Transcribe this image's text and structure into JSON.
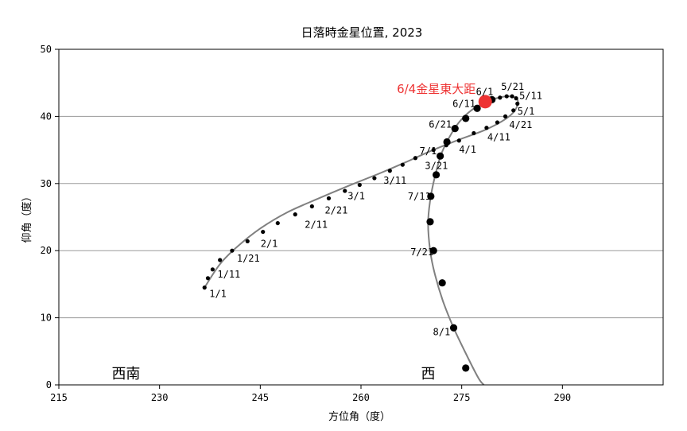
{
  "chart_data": {
    "type": "scatter",
    "title": "日落時金星位置, 2023",
    "xlabel": "方位角（度）",
    "ylabel": "仰角（度）",
    "xlim": [
      215,
      305
    ],
    "ylim": [
      0,
      50
    ],
    "xticks": [
      215,
      230,
      245,
      260,
      275,
      290
    ],
    "yticks": [
      0,
      10,
      20,
      30,
      40,
      50
    ],
    "grid": "horizontal",
    "line_color": "#808080",
    "point_color": "#000000",
    "highlight_color": "#ee3333",
    "path": [
      [
        236.7,
        14.5
      ],
      [
        239.0,
        18.0
      ],
      [
        241.7,
        20.7
      ],
      [
        245.0,
        23.3
      ],
      [
        249.0,
        25.7
      ],
      [
        253.5,
        27.7
      ],
      [
        258.0,
        29.6
      ],
      [
        262.5,
        31.4
      ],
      [
        266.5,
        33.1
      ],
      [
        270.5,
        34.9
      ],
      [
        274.5,
        36.5
      ],
      [
        278.5,
        38.0
      ],
      [
        281.5,
        39.6
      ],
      [
        283.0,
        41.0
      ],
      [
        283.3,
        42.5
      ],
      [
        282.0,
        43.0
      ],
      [
        279.5,
        42.5
      ],
      [
        277.0,
        41.3
      ],
      [
        275.0,
        39.6
      ],
      [
        273.5,
        37.5
      ],
      [
        272.0,
        34.5
      ],
      [
        271.0,
        31.0
      ],
      [
        270.3,
        27.5
      ],
      [
        270.0,
        24.0
      ],
      [
        270.3,
        20.0
      ],
      [
        271.0,
        16.5
      ],
      [
        272.2,
        12.5
      ],
      [
        273.8,
        8.5
      ],
      [
        275.7,
        4.5
      ],
      [
        277.5,
        1.0
      ],
      [
        278.3,
        0
      ]
    ],
    "small_points": [
      [
        236.7,
        14.5
      ],
      [
        237.2,
        15.9
      ],
      [
        237.9,
        17.2
      ],
      [
        239.0,
        18.6
      ],
      [
        240.8,
        20.0
      ],
      [
        243.1,
        21.4
      ],
      [
        245.4,
        22.8
      ],
      [
        247.6,
        24.1
      ],
      [
        250.2,
        25.4
      ],
      [
        252.7,
        26.6
      ],
      [
        255.2,
        27.8
      ],
      [
        257.6,
        28.9
      ],
      [
        259.8,
        29.8
      ],
      [
        262.0,
        30.8
      ],
      [
        264.3,
        31.9
      ],
      [
        266.2,
        32.8
      ],
      [
        268.1,
        33.8
      ],
      [
        270.8,
        35.0
      ],
      [
        272.7,
        35.7
      ],
      [
        274.6,
        36.4
      ],
      [
        276.8,
        37.5
      ],
      [
        278.7,
        38.3
      ],
      [
        280.3,
        39.1
      ],
      [
        281.5,
        40.0
      ],
      [
        282.7,
        40.9
      ],
      [
        283.3,
        41.9
      ],
      [
        283.1,
        42.7
      ],
      [
        282.5,
        43.0
      ],
      [
        281.7,
        43.0
      ],
      [
        280.7,
        42.8
      ]
    ],
    "large_points": [
      [
        279.5,
        42.5
      ],
      [
        277.3,
        41.2
      ],
      [
        275.6,
        39.7
      ],
      [
        274.0,
        38.2
      ],
      [
        272.8,
        36.2
      ],
      [
        271.8,
        34.1
      ],
      [
        271.2,
        31.3
      ],
      [
        270.4,
        28.1
      ],
      [
        270.3,
        24.3
      ],
      [
        270.8,
        20.0
      ],
      [
        272.1,
        15.2
      ],
      [
        273.8,
        8.5
      ],
      [
        275.6,
        2.5
      ]
    ],
    "data_labels": [
      {
        "text": "1/1",
        "x": 236.7,
        "y": 14.5,
        "dx": 6,
        "dy": 12
      },
      {
        "text": "1/11",
        "x": 237.9,
        "y": 17.2,
        "dx": 6,
        "dy": 10
      },
      {
        "text": "1/21",
        "x": 240.8,
        "y": 20.0,
        "dx": 6,
        "dy": 14
      },
      {
        "text": "2/1",
        "x": 245.4,
        "y": 22.8,
        "dx": -3,
        "dy": 19
      },
      {
        "text": "2/11",
        "x": 250.2,
        "y": 25.4,
        "dx": 12,
        "dy": 17
      },
      {
        "text": "2/21",
        "x": 255.2,
        "y": 27.8,
        "dx": -5,
        "dy": 19
      },
      {
        "text": "3/1",
        "x": 259.8,
        "y": 29.8,
        "dx": -15,
        "dy": 18
      },
      {
        "text": "3/11",
        "x": 264.3,
        "y": 31.9,
        "dx": -8,
        "dy": 16
      },
      {
        "text": "3/21",
        "x": 268.1,
        "y": 33.8,
        "dx": 12,
        "dy": 14
      },
      {
        "text": "4/1",
        "x": 274.6,
        "y": 36.4,
        "dx": 0,
        "dy": 15
      },
      {
        "text": "4/11",
        "x": 278.7,
        "y": 38.3,
        "dx": 1,
        "dy": 16
      },
      {
        "text": "4/21",
        "x": 280.3,
        "y": 39.1,
        "dx": 15,
        "dy": 7
      },
      {
        "text": "5/1",
        "x": 282.7,
        "y": 40.9,
        "dx": 5,
        "dy": 5
      },
      {
        "text": "5/11",
        "x": 283.1,
        "y": 42.7,
        "dx": 4,
        "dy": 1
      },
      {
        "text": "5/21",
        "x": 281.7,
        "y": 43.0,
        "dx": -7,
        "dy": -8
      },
      {
        "text": "6/1",
        "x": 279.5,
        "y": 42.5,
        "dx": -20,
        "dy": -6
      },
      {
        "text": "6/11",
        "x": 277.3,
        "y": 41.2,
        "dx": -31,
        "dy": -2
      },
      {
        "text": "6/21",
        "x": 274.0,
        "y": 38.2,
        "dx": -33,
        "dy": -1
      },
      {
        "text": "7/1",
        "x": 271.8,
        "y": 34.1,
        "dx": -26,
        "dy": -2
      },
      {
        "text": "7/11",
        "x": 270.4,
        "y": 28.1,
        "dx": -29,
        "dy": 4
      },
      {
        "text": "7/21",
        "x": 270.8,
        "y": 20.0,
        "dx": -29,
        "dy": 6
      },
      {
        "text": "8/1",
        "x": 273.8,
        "y": 8.5,
        "dx": -26,
        "dy": 9
      }
    ],
    "highlight": {
      "x": 278.5,
      "y": 42.2,
      "label": "6/4金星東大距"
    },
    "direction_labels": [
      {
        "text": "西南",
        "x": 225
      },
      {
        "text": "西",
        "x": 270
      }
    ]
  }
}
